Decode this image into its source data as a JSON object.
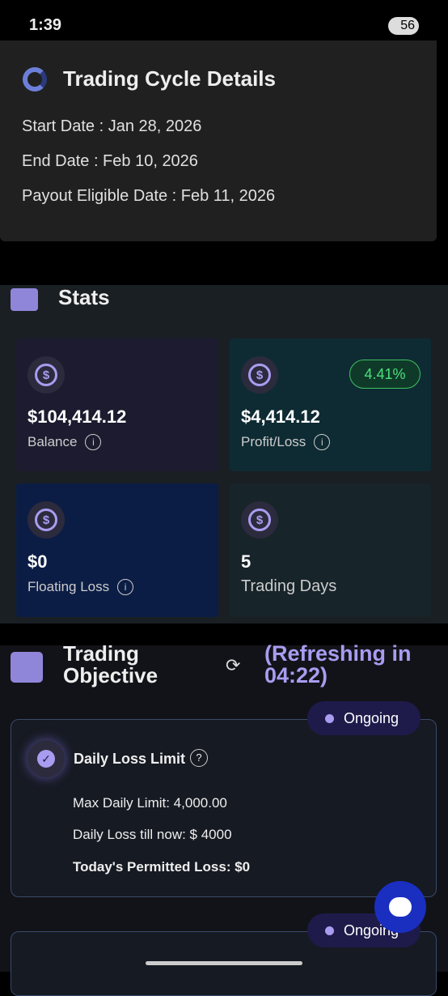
{
  "status_bar": {
    "time": "1:39",
    "battery": "56"
  },
  "cycle_card": {
    "title": "Trading Cycle Details",
    "lines": [
      "Start Date : Jan 28, 2026",
      "End Date : Feb 10, 2026",
      "Payout Eligible Date : Feb 11, 2026"
    ]
  },
  "stats": {
    "title": "Stats",
    "tiles": [
      {
        "value": "$104,414.12",
        "label": "Balance"
      },
      {
        "value": "$4,414.12",
        "label": "Profit/Loss",
        "badge": "4.41%"
      },
      {
        "value": "$0",
        "label": "Floating Loss"
      },
      {
        "value": "5",
        "label": "Trading Days"
      }
    ]
  },
  "objective": {
    "title": "Trading Objective",
    "refresh": "(Refreshing in 04:22)",
    "cards": [
      {
        "status": "Ongoing",
        "title": "Daily Loss Limit",
        "lines": [
          "Max Daily Limit: 4,000.00",
          "Daily Loss till now: $ 4000",
          "Today's Permitted Loss: $0"
        ]
      },
      {
        "status": "Ongoing"
      }
    ]
  }
}
